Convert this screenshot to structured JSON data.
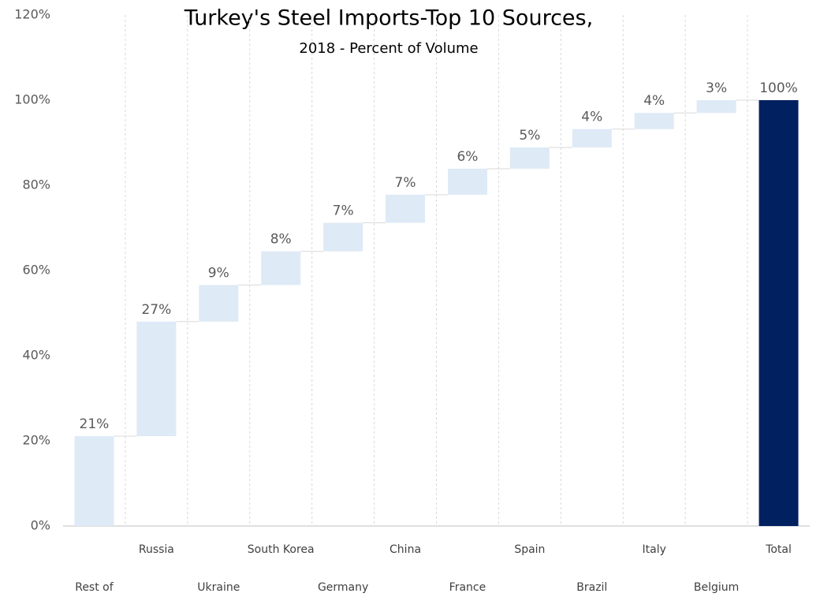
{
  "chart_data": {
    "type": "waterfall",
    "title": "Turkey's Steel Imports-Top 10 Sources,",
    "subtitle": "2018 - Percent of Volume",
    "categories": [
      "Rest of",
      "Russia",
      "Ukraine",
      "South Korea",
      "Germany",
      "China",
      "France",
      "Spain",
      "Brazil",
      "Italy",
      "Belgium",
      "Total"
    ],
    "values": [
      21.1,
      26.9,
      8.6,
      7.9,
      6.7,
      6.6,
      6.1,
      5.0,
      4.3,
      3.8,
      3.0,
      100
    ],
    "value_labels": [
      "21%",
      "27%",
      "9%",
      "8%",
      "7%",
      "7%",
      "6%",
      "5%",
      "4%",
      "4%",
      "3%",
      "100%"
    ],
    "is_total": [
      false,
      false,
      false,
      false,
      false,
      false,
      false,
      false,
      false,
      false,
      false,
      true
    ],
    "color": "#deeaf6",
    "total_color": "#002060",
    "ylim": [
      0,
      120
    ],
    "yticks": [
      {
        "value": 0,
        "label": "0%"
      },
      {
        "value": 20,
        "label": "20%"
      },
      {
        "value": 40,
        "label": "40%"
      },
      {
        "value": 60,
        "label": "60%"
      },
      {
        "value": 80,
        "label": "80%"
      },
      {
        "value": 100,
        "label": "100%"
      },
      {
        "value": 120,
        "label": "120%"
      }
    ],
    "grid": true
  }
}
